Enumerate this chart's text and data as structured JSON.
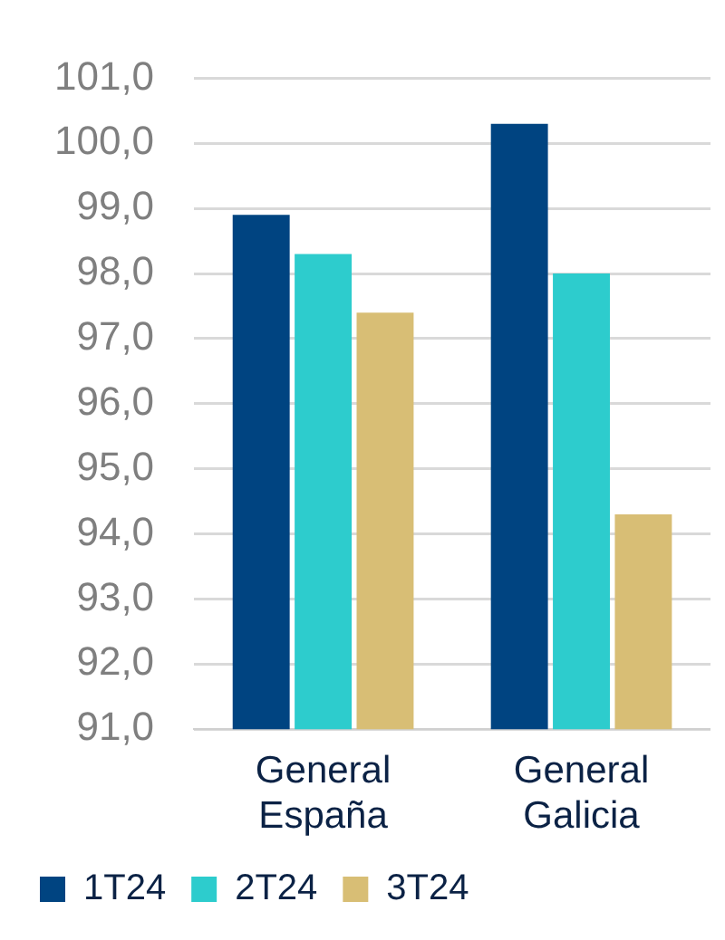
{
  "chart_data": {
    "type": "bar",
    "categories": [
      "General España",
      "General Galicia"
    ],
    "series": [
      {
        "name": "1T24",
        "color": "#004481",
        "values": [
          98.9,
          100.3
        ]
      },
      {
        "name": "2T24",
        "color": "#2dcccd",
        "values": [
          98.3,
          98.0
        ]
      },
      {
        "name": "3T24",
        "color": "#d8be75",
        "values": [
          97.4,
          94.3
        ]
      }
    ],
    "ylim": [
      91,
      101
    ],
    "yticks": [
      {
        "value": 91,
        "label": "91,0"
      },
      {
        "value": 92,
        "label": "92,0"
      },
      {
        "value": 93,
        "label": "93,0"
      },
      {
        "value": 94,
        "label": "94,0"
      },
      {
        "value": 95,
        "label": "95,0"
      },
      {
        "value": 96,
        "label": "96,0"
      },
      {
        "value": 97,
        "label": "97,0"
      },
      {
        "value": 98,
        "label": "98,0"
      },
      {
        "value": 99,
        "label": "99,0"
      },
      {
        "value": 100,
        "label": "100,0"
      },
      {
        "value": 101,
        "label": "101,0"
      }
    ],
    "grid": "y",
    "legend": "bottom left"
  }
}
